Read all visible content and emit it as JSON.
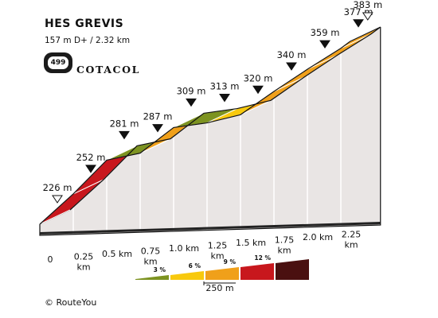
{
  "header": {
    "title": "HES GREVIS",
    "subtitle": "157 m D+ / 2.32 km",
    "badge_number": "499",
    "brand": "COTACOL"
  },
  "footer": {
    "copyright": "© RouteYou"
  },
  "chart_data": {
    "type": "area",
    "x_unit": "km",
    "points": [
      {
        "km": 0,
        "elev": 226,
        "label": "226 m",
        "marker": "open"
      },
      {
        "km": 0.25,
        "elev": 252,
        "label": "252 m",
        "marker": "filled"
      },
      {
        "km": 0.5,
        "elev": 281,
        "label": "281 m",
        "marker": "filled"
      },
      {
        "km": 0.75,
        "elev": 287,
        "label": "287 m",
        "marker": "filled"
      },
      {
        "km": 1.0,
        "elev": 309,
        "label": "309 m",
        "marker": "filled"
      },
      {
        "km": 1.25,
        "elev": 313,
        "label": "313 m",
        "marker": "filled"
      },
      {
        "km": 1.5,
        "elev": 320,
        "label": "320 m",
        "marker": "filled"
      },
      {
        "km": 1.75,
        "elev": 340,
        "label": "340 m",
        "marker": "filled"
      },
      {
        "km": 2.0,
        "elev": 359,
        "label": "359 m",
        "marker": "filled"
      },
      {
        "km": 2.25,
        "elev": 377,
        "label": "377 m",
        "marker": "filled"
      },
      {
        "km": 2.32,
        "elev": 383,
        "label": "383 m",
        "marker": "open"
      }
    ],
    "segment_colors": [
      "#c8171d",
      "#c8171d",
      "#7d9321",
      "#f0a01a",
      "#7d9321",
      "#f8c90d",
      "#f0a01a",
      "#f0a01a",
      "#f0a01a",
      "#f0a01a"
    ],
    "x_tick_labels": [
      {
        "km": 0,
        "lines": [
          "0"
        ]
      },
      {
        "km": 0.25,
        "lines": [
          "0.25",
          "km"
        ]
      },
      {
        "km": 0.5,
        "lines": [
          "0.5 km"
        ]
      },
      {
        "km": 0.75,
        "lines": [
          "0.75",
          "km"
        ]
      },
      {
        "km": 1.0,
        "lines": [
          "1.0 km"
        ]
      },
      {
        "km": 1.25,
        "lines": [
          "1.25",
          "km"
        ]
      },
      {
        "km": 1.5,
        "lines": [
          "1.5 km"
        ]
      },
      {
        "km": 1.75,
        "lines": [
          "1.75",
          "km"
        ]
      },
      {
        "km": 2.0,
        "lines": [
          "2.0 km"
        ]
      },
      {
        "km": 2.25,
        "lines": [
          "2.25",
          "km"
        ]
      }
    ],
    "gradient_legend": [
      {
        "label": "3 %",
        "color": "#7d9321"
      },
      {
        "label": "6 %",
        "color": "#f8c90d"
      },
      {
        "label": "9 %",
        "color": "#f0a01a"
      },
      {
        "label": "12 %",
        "color": "#c8171d"
      },
      {
        "label": "",
        "color": "#4a1010"
      }
    ],
    "scale_label": "250 m",
    "colors": {
      "wall": "#e9e5e4",
      "base": "#a9a9a9",
      "outline": "#111111"
    }
  }
}
